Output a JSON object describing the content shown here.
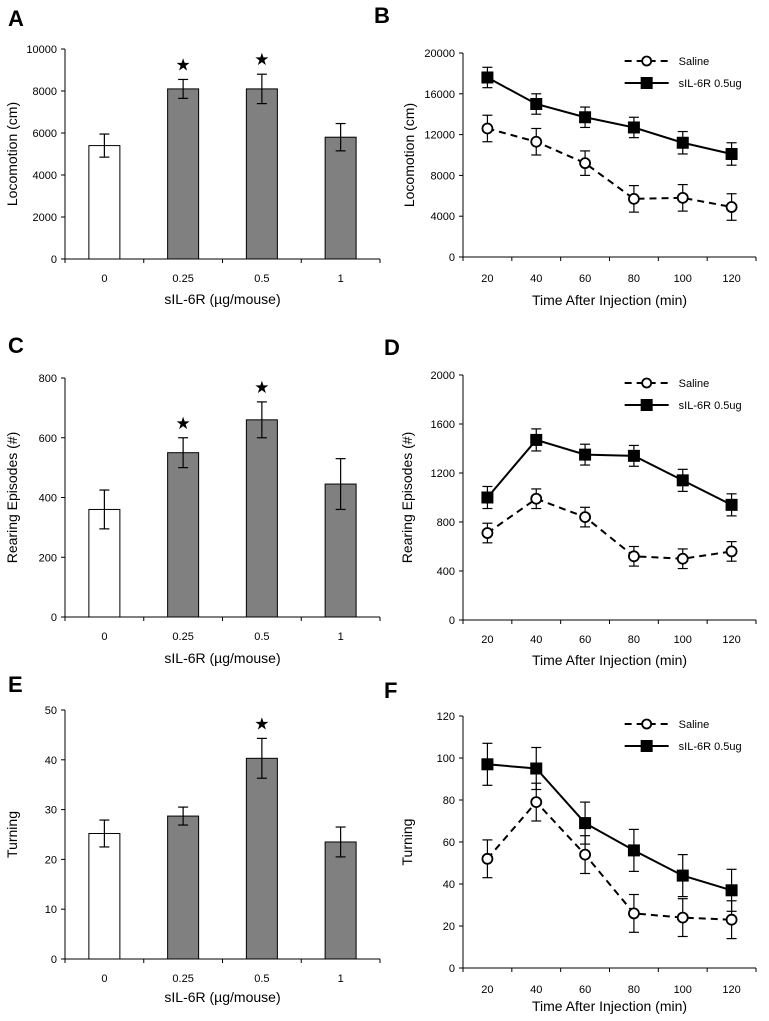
{
  "colors": {
    "bar_control": "#ffffff",
    "bar_treated": "#808080",
    "line": "#000000"
  },
  "legend_series": [
    "Saline",
    "sIL-6R 0.5ug"
  ],
  "chart_data": [
    {
      "panel": "A",
      "type": "bar",
      "xlabel": "sIL-6R (µg/mouse)",
      "ylabel": "Locomotion (cm)",
      "ylim": [
        0,
        10000
      ],
      "yticks": [
        0,
        2000,
        4000,
        6000,
        8000,
        10000
      ],
      "categories": [
        "0",
        "0.25",
        "0.5",
        "1"
      ],
      "values": [
        5400,
        8100,
        8100,
        5800
      ],
      "errors": [
        550,
        450,
        700,
        650
      ],
      "significant": [
        false,
        true,
        true,
        false
      ],
      "significance_mark": "★"
    },
    {
      "panel": "B",
      "type": "line",
      "xlabel": "Time After Injection (min)",
      "ylabel": "Locomotion (cm)",
      "ylim": [
        0,
        20000
      ],
      "yticks": [
        0,
        4000,
        8000,
        12000,
        16000,
        20000
      ],
      "x": [
        20,
        40,
        60,
        80,
        100,
        120
      ],
      "legend_position": "top-right",
      "series": [
        {
          "name": "Saline",
          "marker": "open-circle",
          "dash": true,
          "values": [
            12600,
            11300,
            9200,
            5700,
            5800,
            4900
          ],
          "errors": [
            1300,
            1300,
            1200,
            1300,
            1300,
            1300
          ]
        },
        {
          "name": "sIL-6R 0.5ug",
          "marker": "filled-square",
          "dash": false,
          "values": [
            17600,
            15000,
            13700,
            12700,
            11200,
            10100
          ],
          "errors": [
            1000,
            1000,
            1000,
            1000,
            1100,
            1100
          ]
        }
      ]
    },
    {
      "panel": "C",
      "type": "bar",
      "xlabel": "sIL-6R (µg/mouse)",
      "ylabel": "Rearing Episodes (#)",
      "ylim": [
        0,
        800
      ],
      "yticks": [
        0,
        200,
        400,
        600,
        800
      ],
      "categories": [
        "0",
        "0.25",
        "0.5",
        "1"
      ],
      "values": [
        360,
        550,
        660,
        445
      ],
      "errors": [
        65,
        50,
        60,
        85
      ],
      "significant": [
        false,
        true,
        true,
        false
      ],
      "significance_mark": "★"
    },
    {
      "panel": "D",
      "type": "line",
      "xlabel": "Time After Injection (min)",
      "ylabel": "Rearing Episodes (#)",
      "ylim": [
        0,
        2000
      ],
      "yticks": [
        0,
        400,
        800,
        1200,
        1600,
        2000
      ],
      "x": [
        20,
        40,
        60,
        80,
        100,
        120
      ],
      "legend_position": "top-right",
      "series": [
        {
          "name": "Saline",
          "marker": "open-circle",
          "dash": true,
          "values": [
            710,
            990,
            840,
            520,
            500,
            560
          ],
          "errors": [
            80,
            80,
            80,
            80,
            80,
            80
          ]
        },
        {
          "name": "sIL-6R 0.5ug",
          "marker": "filled-square",
          "dash": false,
          "values": [
            1000,
            1470,
            1350,
            1340,
            1140,
            940
          ],
          "errors": [
            90,
            90,
            85,
            85,
            90,
            90
          ]
        }
      ]
    },
    {
      "panel": "E",
      "type": "bar",
      "xlabel": "sIL-6R (µg/mouse)",
      "ylabel": "Turning",
      "ylim": [
        0,
        50
      ],
      "yticks": [
        0,
        10,
        20,
        30,
        40,
        50
      ],
      "categories": [
        "0",
        "0.25",
        "0.5",
        "1"
      ],
      "values": [
        25.2,
        28.7,
        40.3,
        23.5
      ],
      "errors": [
        2.7,
        1.8,
        4,
        3
      ],
      "significant": [
        false,
        false,
        true,
        false
      ],
      "significance_mark": "★"
    },
    {
      "panel": "F",
      "type": "line",
      "xlabel": "Time After Injection (min)",
      "ylabel": "Turning",
      "ylim": [
        0,
        120
      ],
      "yticks": [
        0,
        20,
        40,
        60,
        80,
        100,
        120
      ],
      "x": [
        20,
        40,
        60,
        80,
        100,
        120
      ],
      "legend_position": "top-right",
      "series": [
        {
          "name": "Saline",
          "marker": "open-circle",
          "dash": true,
          "values": [
            52,
            79,
            54,
            26,
            24,
            23
          ],
          "errors": [
            9,
            9,
            9,
            9,
            9,
            9
          ]
        },
        {
          "name": "sIL-6R 0.5ug",
          "marker": "filled-square",
          "dash": false,
          "values": [
            97,
            95,
            69,
            56,
            44,
            37
          ],
          "errors": [
            10,
            10,
            10,
            10,
            10,
            10
          ]
        }
      ]
    }
  ]
}
